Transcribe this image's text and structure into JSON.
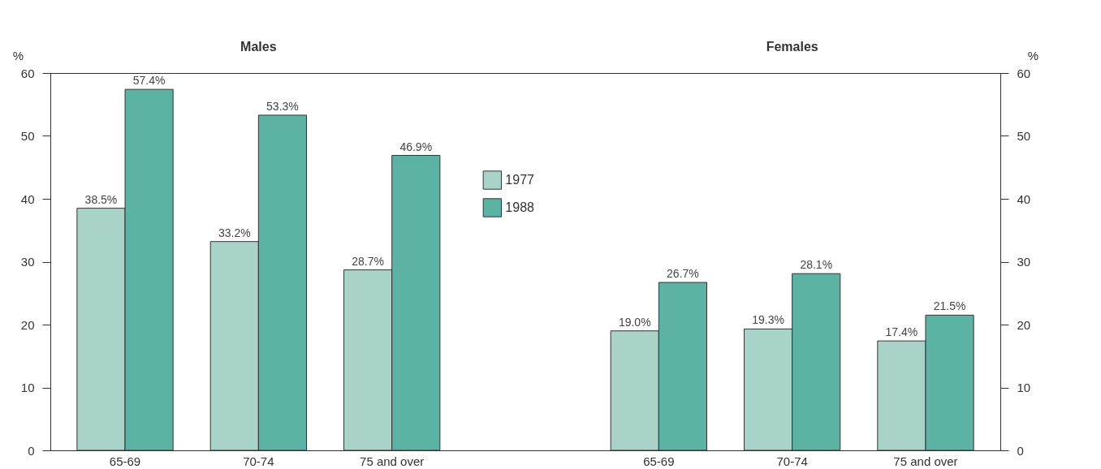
{
  "chart_data": {
    "type": "bar",
    "categories": [
      "65-69",
      "70-74",
      "75 and over",
      null,
      "65-69",
      "70-74",
      "75 and over"
    ],
    "series": [
      {
        "name": "1977",
        "color": "#a9d3c8",
        "values": [
          38.5,
          33.2,
          28.7,
          null,
          19.0,
          19.3,
          17.4
        ],
        "value_labels": [
          "38.5%",
          "33.2%",
          "28.7%",
          null,
          "19.0%",
          "19.3%",
          "17.4%"
        ]
      },
      {
        "name": "1988",
        "color": "#5db3a3",
        "values": [
          57.4,
          53.3,
          46.9,
          null,
          26.7,
          28.1,
          21.5
        ],
        "value_labels": [
          "57.4%",
          "53.3%",
          "46.9%",
          null,
          "26.7%",
          "28.1%",
          "21.5%"
        ]
      }
    ],
    "ylabel": "%",
    "y2label": "%",
    "ylim": [
      0,
      60
    ],
    "yticks": [
      0,
      10,
      20,
      30,
      40,
      50,
      60
    ],
    "y2lim": [
      0,
      60
    ],
    "y2ticks": [
      0,
      10,
      20,
      30,
      40,
      50,
      60
    ],
    "annotations": [
      "Males",
      "Females"
    ],
    "legend": "top",
    "grid": false
  }
}
